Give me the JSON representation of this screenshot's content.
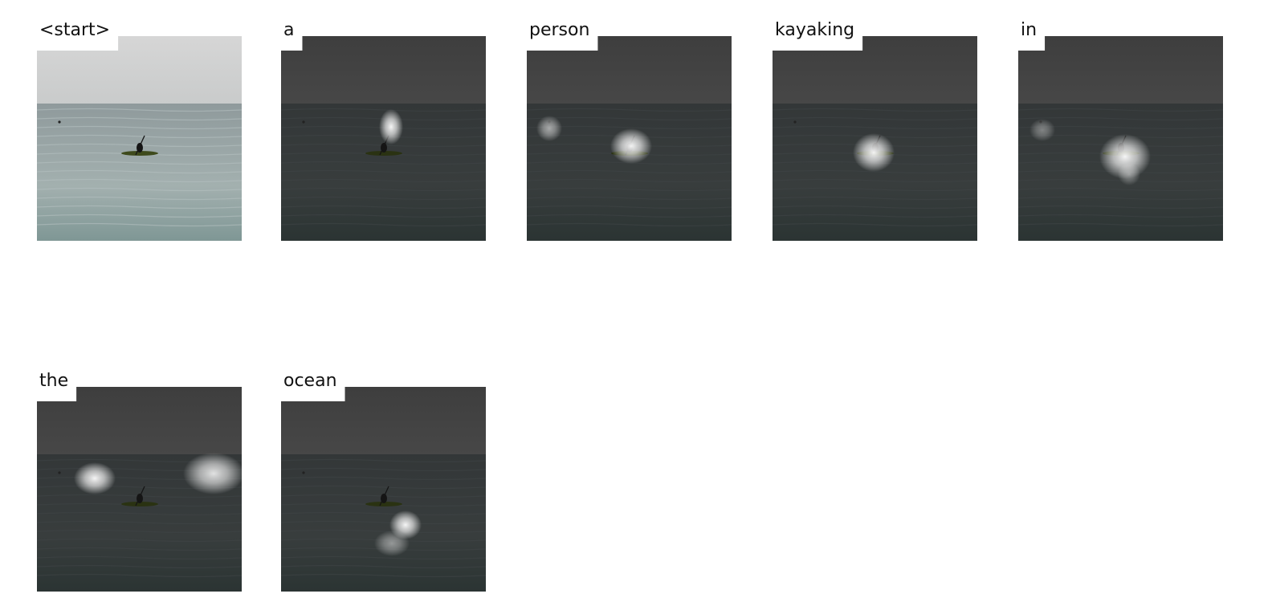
{
  "panels": [
    {
      "word": "<start>"
    },
    {
      "word": "a"
    },
    {
      "word": "person"
    },
    {
      "word": "kayaking"
    },
    {
      "word": "in"
    },
    {
      "word": "the"
    },
    {
      "word": "ocean"
    }
  ]
}
